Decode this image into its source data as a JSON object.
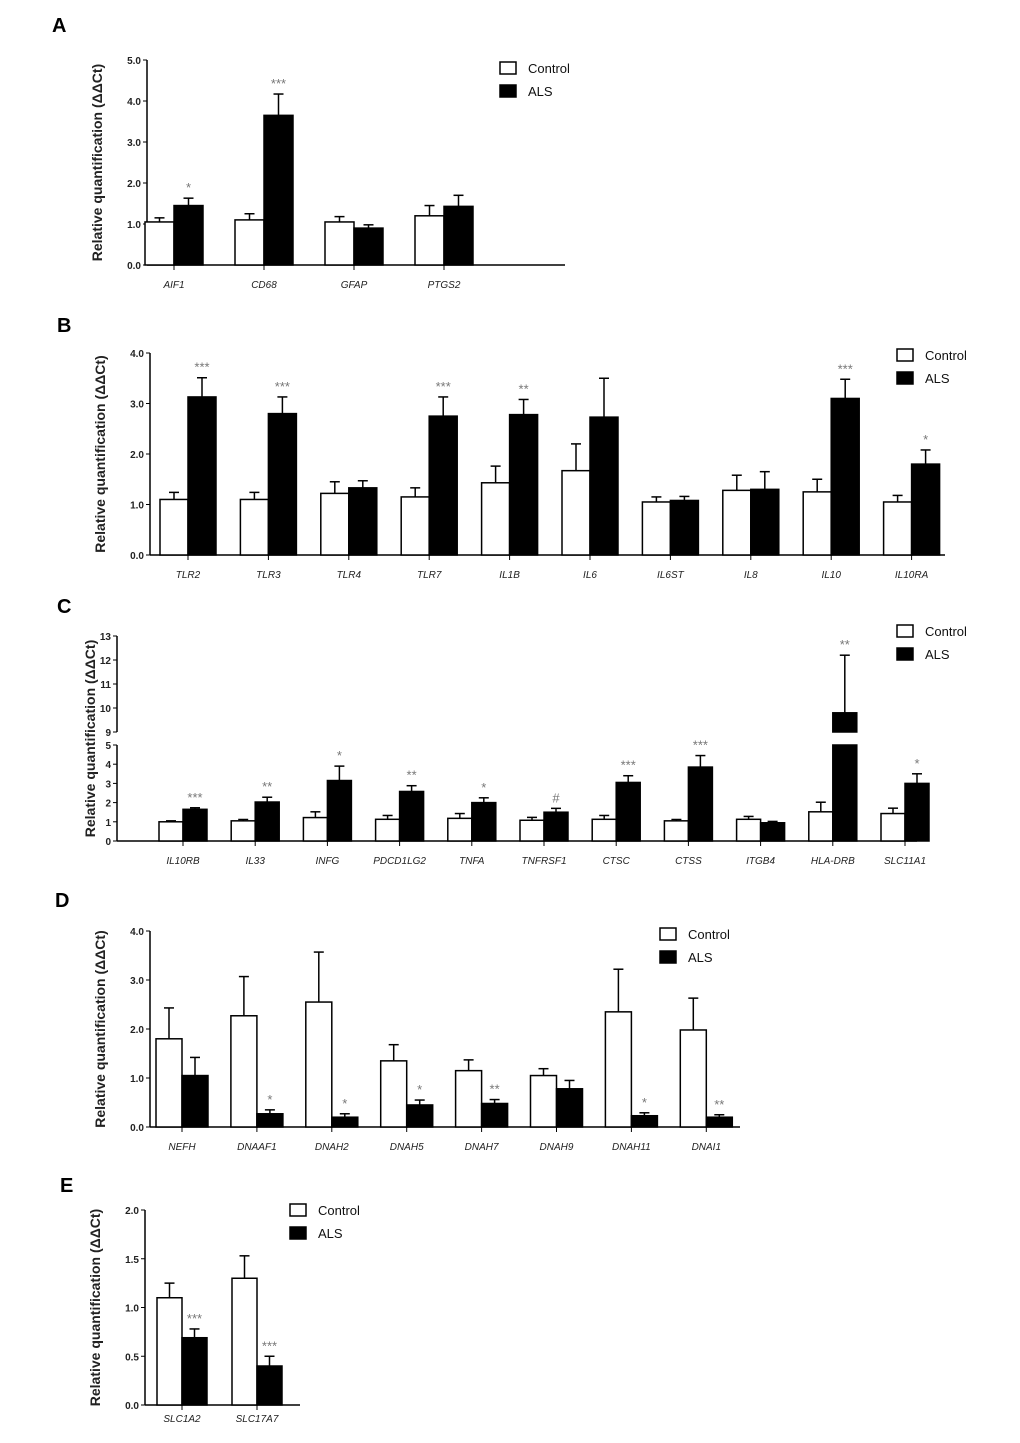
{
  "chart_data": [
    {
      "panel": "A",
      "type": "bar",
      "ylabel": "Relative quantification (ΔΔCt)",
      "ylim": [
        0,
        5
      ],
      "yticks": [
        "0.0",
        "1.0",
        "2.0",
        "3.0",
        "4.0",
        "5.0"
      ],
      "legend": [
        "Control",
        "ALS"
      ],
      "legend_position": "top-right",
      "categories": [
        "AIF1",
        "CD68",
        "GFAP",
        "PTGS2"
      ],
      "series": [
        {
          "name": "Control",
          "values": [
            1.05,
            1.1,
            1.05,
            1.2
          ],
          "errors": [
            0.1,
            0.15,
            0.13,
            0.25
          ]
        },
        {
          "name": "ALS",
          "values": [
            1.45,
            3.65,
            0.9,
            1.43
          ],
          "errors": [
            0.18,
            0.52,
            0.08,
            0.27
          ]
        }
      ],
      "significance": [
        "*",
        "***",
        "",
        ""
      ]
    },
    {
      "panel": "B",
      "type": "bar",
      "ylabel": "Relative quantification (ΔΔCt)",
      "ylim": [
        0,
        4
      ],
      "yticks": [
        "0.0",
        "1.0",
        "2.0",
        "3.0",
        "4.0"
      ],
      "legend": [
        "Control",
        "ALS"
      ],
      "legend_position": "top-right",
      "categories": [
        "TLR2",
        "TLR3",
        "TLR4",
        "TLR7",
        "IL1B",
        "IL6",
        "IL6ST",
        "IL8",
        "IL10",
        "IL10RA"
      ],
      "series": [
        {
          "name": "Control",
          "values": [
            1.1,
            1.1,
            1.22,
            1.15,
            1.43,
            1.67,
            1.05,
            1.28,
            1.25,
            1.05
          ],
          "errors": [
            0.14,
            0.14,
            0.23,
            0.18,
            0.33,
            0.53,
            0.1,
            0.3,
            0.25,
            0.13
          ]
        },
        {
          "name": "ALS",
          "values": [
            3.13,
            2.8,
            1.33,
            2.75,
            2.78,
            2.73,
            1.08,
            1.3,
            3.1,
            1.8
          ],
          "errors": [
            0.38,
            0.33,
            0.14,
            0.38,
            0.3,
            0.77,
            0.08,
            0.35,
            0.38,
            0.28
          ]
        }
      ],
      "significance": [
        "***",
        "***",
        "",
        "***",
        "**",
        "",
        "",
        "",
        "***",
        "*"
      ]
    },
    {
      "panel": "C",
      "type": "bar",
      "ylabel": "Relative quantification (ΔΔCt)",
      "ylim": [
        0,
        13
      ],
      "axis_break": [
        5,
        9
      ],
      "yticks": [
        "0",
        "1",
        "2",
        "3",
        "4",
        "5",
        "9",
        "10",
        "11",
        "12",
        "13"
      ],
      "legend": [
        "Control",
        "ALS"
      ],
      "legend_position": "top-right",
      "categories": [
        "IL10RB",
        "IL33",
        "INFG",
        "PDCD1LG2",
        "TNFA",
        "TNFRSF1",
        "CTSC",
        "CTSS",
        "ITGB4",
        "HLA-DRB",
        "SLC11A1"
      ],
      "series": [
        {
          "name": "Control",
          "values": [
            1.0,
            1.05,
            1.22,
            1.13,
            1.18,
            1.08,
            1.13,
            1.05,
            1.13,
            1.52,
            1.43
          ],
          "errors": [
            0.05,
            0.07,
            0.3,
            0.2,
            0.25,
            0.15,
            0.2,
            0.07,
            0.15,
            0.5,
            0.28
          ]
        },
        {
          "name": "ALS",
          "values": [
            1.65,
            2.03,
            3.15,
            2.58,
            2.0,
            1.5,
            3.05,
            3.85,
            0.95,
            9.8,
            3.0
          ],
          "errors": [
            0.08,
            0.25,
            0.75,
            0.3,
            0.25,
            0.2,
            0.35,
            0.6,
            0.07,
            2.4,
            0.5
          ]
        }
      ],
      "significance": [
        "***",
        "**",
        "*",
        "**",
        "*",
        "#",
        "***",
        "***",
        "",
        "**",
        "*"
      ]
    },
    {
      "panel": "D",
      "type": "bar",
      "ylabel": "Relative quantification (ΔΔCt)",
      "ylim": [
        0,
        4
      ],
      "yticks": [
        "0.0",
        "1.0",
        "2.0",
        "3.0",
        "4.0"
      ],
      "legend": [
        "Control",
        "ALS"
      ],
      "legend_position": "top-right",
      "categories": [
        "NEFH",
        "DNAAF1",
        "DNAH2",
        "DNAH5",
        "DNAH7",
        "DNAH9",
        "DNAH11",
        "DNAI1"
      ],
      "series": [
        {
          "name": "Control",
          "values": [
            1.8,
            2.27,
            2.55,
            1.35,
            1.15,
            1.05,
            2.35,
            1.98
          ],
          "errors": [
            0.63,
            0.8,
            1.02,
            0.33,
            0.22,
            0.14,
            0.87,
            0.65
          ]
        },
        {
          "name": "ALS",
          "values": [
            1.05,
            0.27,
            0.2,
            0.45,
            0.48,
            0.78,
            0.23,
            0.2
          ],
          "errors": [
            0.37,
            0.08,
            0.07,
            0.1,
            0.08,
            0.17,
            0.06,
            0.05
          ]
        }
      ],
      "significance": [
        "",
        "*",
        "*",
        "*",
        "**",
        "",
        "*",
        "**"
      ]
    },
    {
      "panel": "E",
      "type": "bar",
      "ylabel": "Relative quantification (ΔΔCt)",
      "ylim": [
        0,
        2
      ],
      "yticks": [
        "0.0",
        "0.5",
        "1.0",
        "1.5",
        "2.0"
      ],
      "legend": [
        "Control",
        "ALS"
      ],
      "legend_position": "top-right",
      "categories": [
        "SLC1A2",
        "SLC17A7"
      ],
      "series": [
        {
          "name": "Control",
          "values": [
            1.1,
            1.3
          ],
          "errors": [
            0.15,
            0.23
          ]
        },
        {
          "name": "ALS",
          "values": [
            0.69,
            0.4
          ],
          "errors": [
            0.09,
            0.1
          ]
        }
      ],
      "significance": [
        "***",
        "***"
      ]
    }
  ]
}
